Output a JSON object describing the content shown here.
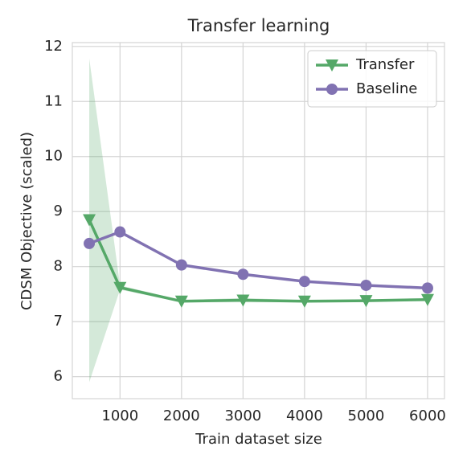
{
  "chart_data": {
    "type": "line",
    "title": "Transfer learning",
    "x_label": "Train dataset size",
    "y_label": "CDSM Objective (scaled)",
    "x": [
      500,
      1000,
      2000,
      3000,
      4000,
      5000,
      6000
    ],
    "series": [
      {
        "name": "Transfer",
        "color": "#55a868",
        "marker": "triangle-down",
        "values": [
          8.85,
          7.62,
          7.37,
          7.39,
          7.37,
          7.38,
          7.4
        ],
        "lower": [
          5.9,
          7.58,
          7.35,
          7.35,
          7.35,
          7.36,
          7.38
        ],
        "upper": [
          11.78,
          7.66,
          7.39,
          7.43,
          7.39,
          7.4,
          7.42
        ]
      },
      {
        "name": "Baseline",
        "color": "#8172b2",
        "marker": "circle",
        "values": [
          8.42,
          8.63,
          8.03,
          7.86,
          7.73,
          7.66,
          7.61
        ]
      }
    ],
    "xlim": [
      225,
      6275
    ],
    "ylim": [
      5.6,
      12.07
    ],
    "xticks": [
      1000,
      2000,
      3000,
      4000,
      5000,
      6000
    ],
    "yticks": [
      6,
      7,
      8,
      9,
      10,
      11,
      12
    ],
    "grid": true,
    "legend": "upper right"
  }
}
